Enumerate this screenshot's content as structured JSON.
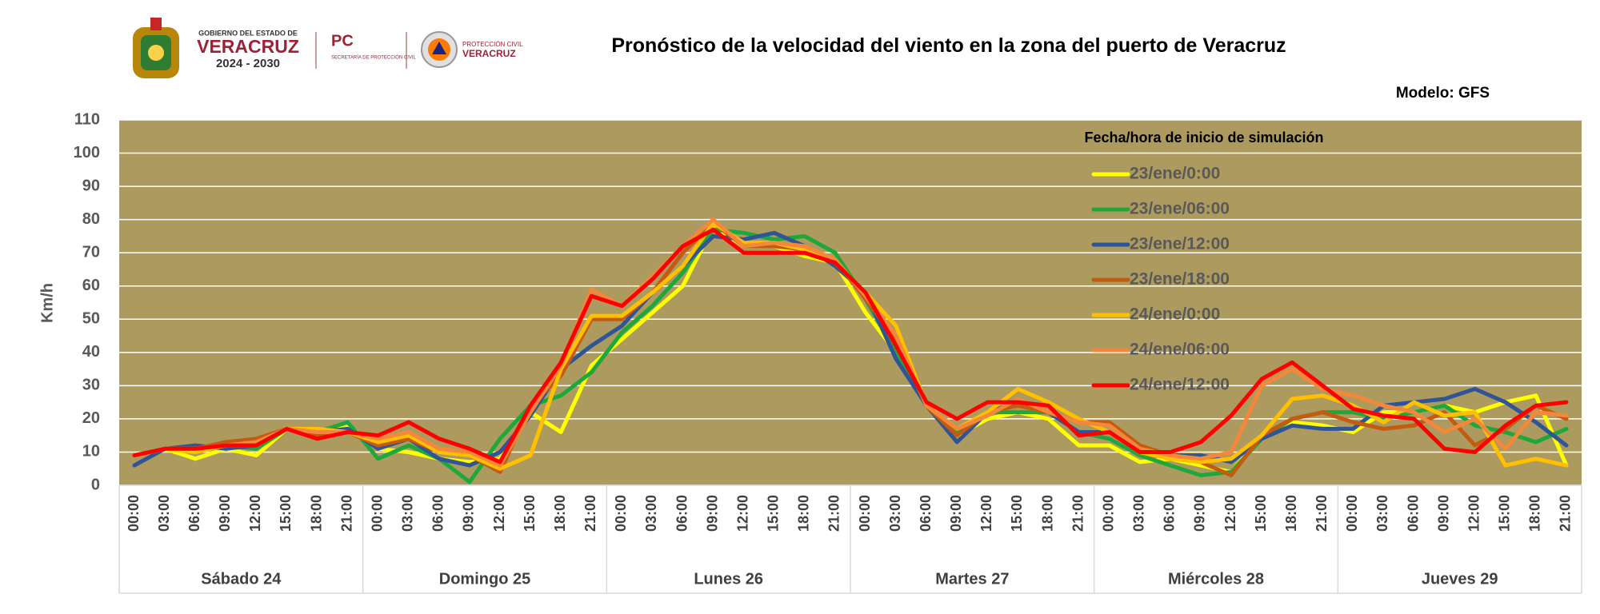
{
  "header": {
    "gov_line1": "GOBIERNO DEL ESTADO DE",
    "gov_line2": "VERACRUZ",
    "gov_line3": "2024 - 2030",
    "pc": "PC",
    "pc_sub": "SECRETARÍA DE PROTECCIÓN CIVIL",
    "pcv_line1": "PROTECCIÓN CIVIL",
    "pcv_line2": "VERACRUZ"
  },
  "chart_data": {
    "type": "line",
    "title": "Pronóstico de la velocidad del viento en la zona del puerto de Veracruz",
    "annotation": "Modelo: GFS",
    "y_label": "Km/h",
    "legend_title": "Fecha/hora de inicio de simulación",
    "legend_position": "upper-right",
    "grid": true,
    "background": "#ad9a5f",
    "ylim": [
      0,
      110
    ],
    "yticks": [
      0,
      10,
      20,
      30,
      40,
      50,
      60,
      70,
      80,
      90,
      100,
      110
    ],
    "groups": [
      "Sábado 24",
      "Domingo 25",
      "Lunes 26",
      "Martes 27",
      "Miércoles 28",
      "Jueves 29"
    ],
    "categories": [
      "00:00",
      "03:00",
      "06:00",
      "09:00",
      "12:00",
      "15:00",
      "18:00",
      "21:00",
      "00:00",
      "03:00",
      "06:00",
      "09:00",
      "12:00",
      "15:00",
      "18:00",
      "21:00",
      "00:00",
      "03:00",
      "06:00",
      "09:00",
      "12:00",
      "15:00",
      "18:00",
      "21:00",
      "00:00",
      "03:00",
      "06:00",
      "09:00",
      "12:00",
      "15:00",
      "18:00",
      "21:00",
      "00:00",
      "03:00",
      "06:00",
      "09:00",
      "12:00",
      "15:00",
      "18:00",
      "21:00",
      "00:00",
      "03:00",
      "06:00",
      "09:00",
      "12:00",
      "15:00",
      "18:00",
      "21:00"
    ],
    "series": [
      {
        "name": "23/ene/0:00",
        "color": "#ffff00",
        "values": [
          9,
          11,
          8,
          11,
          9,
          17,
          15,
          18,
          11,
          10,
          8,
          7,
          8,
          22,
          16,
          36,
          44,
          52,
          60,
          78,
          72,
          72,
          69,
          67,
          52,
          40,
          25,
          15,
          20,
          22,
          20,
          12,
          12,
          7,
          8,
          6,
          4,
          15,
          19,
          18,
          16,
          22,
          22,
          24,
          22,
          25,
          27,
          6
        ]
      },
      {
        "name": "23/ene/06:00",
        "color": "#1ea83c",
        "values": [
          9,
          11,
          10,
          12,
          11,
          17,
          16,
          19,
          8,
          12,
          8,
          1,
          14,
          24,
          27,
          34,
          46,
          54,
          64,
          77,
          76,
          74,
          75,
          70,
          56,
          40,
          24,
          16,
          22,
          22,
          22,
          16,
          14,
          9,
          6,
          3,
          4,
          14,
          20,
          22,
          22,
          20,
          22,
          24,
          18,
          16,
          13,
          17
        ]
      },
      {
        "name": "23/ene/12:00",
        "color": "#2f5597",
        "values": [
          6,
          11,
          12,
          11,
          12,
          17,
          16,
          17,
          11,
          14,
          8,
          6,
          10,
          21,
          35,
          42,
          48,
          58,
          66,
          75,
          74,
          76,
          72,
          66,
          58,
          38,
          24,
          13,
          22,
          25,
          22,
          16,
          16,
          10,
          9,
          9,
          7,
          14,
          18,
          17,
          17,
          24,
          25,
          26,
          29,
          25,
          19,
          12
        ]
      },
      {
        "name": "23/ene/18:00",
        "color": "#c55a11",
        "values": [
          9,
          11,
          11,
          13,
          14,
          17,
          15,
          16,
          12,
          14,
          10,
          9,
          4,
          24,
          33,
          50,
          50,
          58,
          70,
          79,
          72,
          72,
          71,
          68,
          56,
          44,
          24,
          15,
          22,
          24,
          22,
          19,
          19,
          12,
          9,
          7,
          3,
          15,
          20,
          22,
          19,
          17,
          18,
          22,
          12,
          17,
          24,
          20
        ]
      },
      {
        "name": "24/ene/0:00",
        "color": "#ffc000",
        "values": [
          9,
          11,
          10,
          12,
          12,
          17,
          17,
          16,
          13,
          15,
          10,
          9,
          5,
          9,
          35,
          51,
          51,
          58,
          66,
          79,
          73,
          73,
          71,
          67,
          58,
          48,
          24,
          17,
          22,
          29,
          25,
          20,
          16,
          10,
          8,
          7,
          8,
          15,
          26,
          27,
          24,
          19,
          25,
          21,
          22,
          6,
          8,
          6
        ]
      },
      {
        "name": "24/ene/06:00",
        "color": "#f4883a",
        "values": [
          9,
          11,
          11,
          12,
          13,
          17,
          16,
          16,
          14,
          16,
          11,
          10,
          6,
          22,
          36,
          59,
          54,
          63,
          72,
          80,
          72,
          73,
          72,
          68,
          57,
          45,
          24,
          17,
          21,
          26,
          22,
          19,
          18,
          11,
          9,
          8,
          10,
          30,
          35,
          29,
          27,
          24,
          22,
          16,
          20,
          11,
          22,
          21
        ]
      },
      {
        "name": "24/ene/12:00",
        "color": "#ff0000",
        "values": [
          9,
          11,
          11,
          12,
          12,
          17,
          14,
          16,
          15,
          19,
          14,
          11,
          7,
          24,
          37,
          57,
          54,
          62,
          72,
          77,
          70,
          70,
          70,
          67,
          58,
          42,
          25,
          20,
          25,
          25,
          24,
          15,
          16,
          10,
          10,
          13,
          21,
          32,
          37,
          30,
          23,
          21,
          20,
          11,
          10,
          18,
          24,
          25
        ]
      }
    ]
  }
}
